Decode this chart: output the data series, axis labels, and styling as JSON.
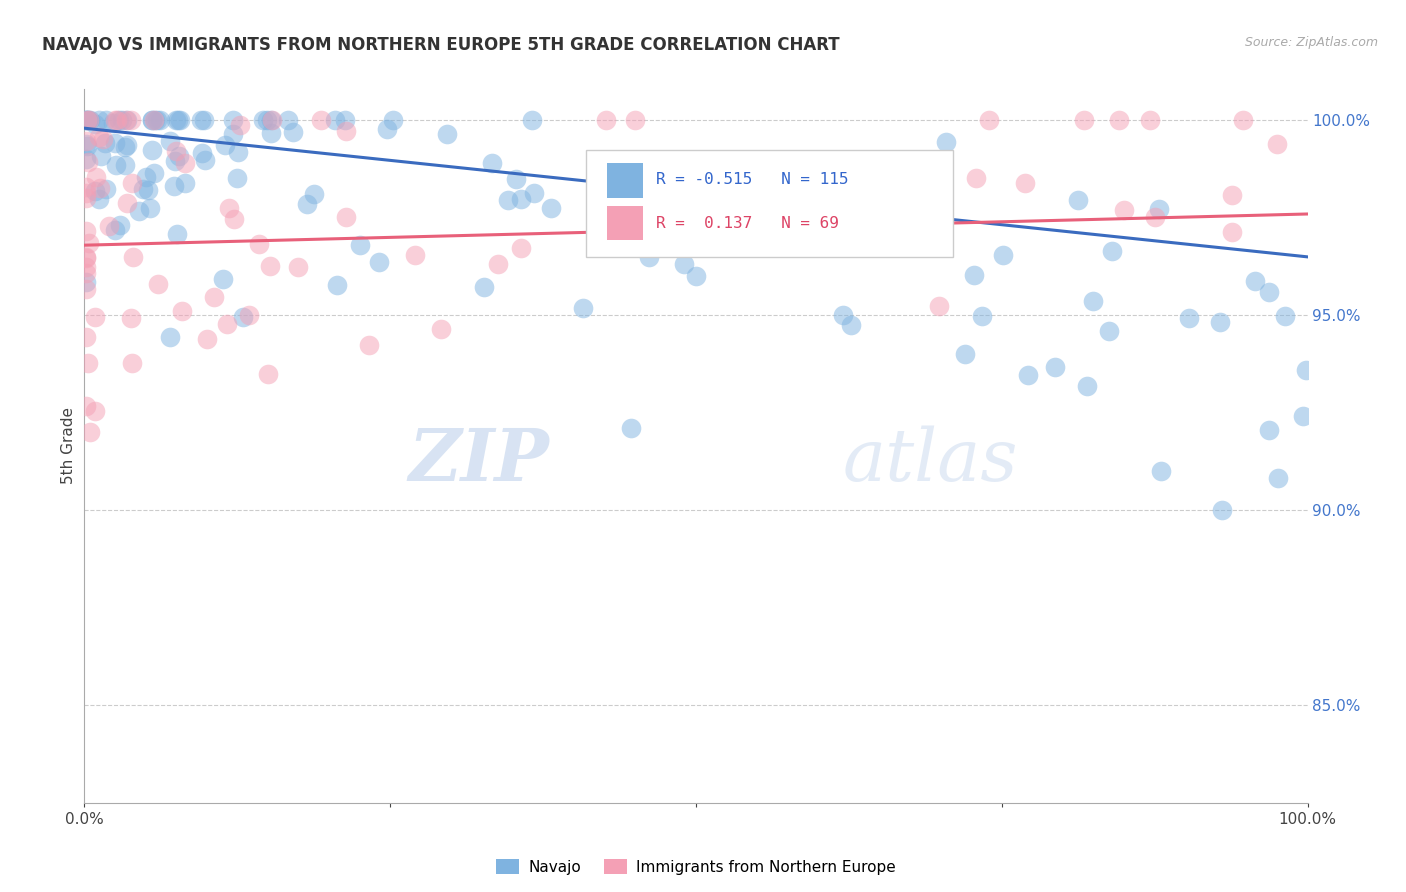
{
  "title": "NAVAJO VS IMMIGRANTS FROM NORTHERN EUROPE 5TH GRADE CORRELATION CHART",
  "source": "Source: ZipAtlas.com",
  "ylabel": "5th Grade",
  "legend_navajo": "Navajo",
  "legend_immigrants": "Immigrants from Northern Europe",
  "navajo_R": -0.515,
  "navajo_N": 115,
  "immigrants_R": 0.137,
  "immigrants_N": 69,
  "navajo_color": "#7fb3e0",
  "immigrants_color": "#f4a0b5",
  "trendline_navajo_color": "#3a6bbf",
  "trendline_immigrants_color": "#e8607a",
  "watermark_zip": "ZIP",
  "watermark_atlas": "atlas",
  "ytick_values": [
    1.0,
    0.95,
    0.9,
    0.85
  ],
  "ymin": 0.825,
  "ymax": 1.008,
  "navajo_scatter_x": [
    0.003,
    0.005,
    0.007,
    0.008,
    0.009,
    0.01,
    0.01,
    0.012,
    0.013,
    0.014,
    0.015,
    0.016,
    0.017,
    0.018,
    0.019,
    0.02,
    0.02,
    0.022,
    0.023,
    0.024,
    0.025,
    0.026,
    0.027,
    0.028,
    0.029,
    0.03,
    0.031,
    0.032,
    0.033,
    0.035,
    0.037,
    0.04,
    0.042,
    0.045,
    0.048,
    0.05,
    0.055,
    0.06,
    0.065,
    0.07,
    0.08,
    0.09,
    0.1,
    0.11,
    0.12,
    0.14,
    0.16,
    0.18,
    0.2,
    0.22,
    0.25,
    0.28,
    0.3,
    0.33,
    0.36,
    0.4,
    0.43,
    0.46,
    0.5,
    0.53,
    0.56,
    0.59,
    0.62,
    0.64,
    0.66,
    0.68,
    0.7,
    0.72,
    0.73,
    0.75,
    0.76,
    0.78,
    0.8,
    0.81,
    0.82,
    0.83,
    0.84,
    0.85,
    0.86,
    0.87,
    0.88,
    0.89,
    0.9,
    0.91,
    0.91,
    0.92,
    0.93,
    0.93,
    0.94,
    0.95,
    0.96,
    0.97,
    0.97,
    0.98,
    0.98,
    0.99,
    0.99,
    1.0,
    1.0,
    1.0,
    1.0,
    1.0,
    1.0,
    1.0,
    1.0,
    1.0,
    1.0,
    1.0,
    1.0,
    1.0,
    1.0,
    1.0,
    1.0,
    1.0,
    1.0
  ],
  "navajo_scatter_y": [
    1.0,
    1.0,
    1.0,
    1.0,
    0.999,
    1.0,
    0.998,
    1.0,
    0.999,
    1.0,
    0.999,
    1.0,
    0.999,
    1.0,
    0.998,
    0.999,
    1.0,
    0.999,
    1.0,
    0.998,
    0.999,
    1.0,
    0.998,
    0.999,
    0.997,
    0.999,
    0.998,
    1.0,
    0.997,
    0.999,
    0.998,
    0.999,
    0.997,
    0.998,
    0.996,
    0.998,
    0.997,
    0.996,
    0.997,
    0.995,
    0.996,
    0.995,
    0.994,
    0.995,
    0.994,
    0.993,
    0.993,
    0.992,
    0.991,
    0.99,
    0.99,
    0.988,
    0.988,
    0.987,
    0.986,
    0.984,
    0.983,
    0.981,
    0.98,
    0.978,
    0.977,
    0.975,
    0.974,
    0.972,
    0.971,
    0.969,
    0.977,
    0.975,
    0.98,
    0.973,
    0.968,
    0.966,
    0.975,
    0.964,
    0.971,
    0.962,
    0.968,
    0.974,
    0.96,
    0.965,
    0.97,
    0.957,
    0.962,
    0.968,
    0.955,
    0.96,
    0.965,
    0.953,
    0.97,
    0.975,
    0.98,
    0.976,
    0.968,
    0.972,
    0.965,
    0.968,
    0.962,
    0.996,
    0.992,
    0.988,
    0.984,
    0.979,
    0.975,
    0.97,
    0.965,
    0.96,
    0.956,
    0.951,
    0.946,
    0.941,
    0.936,
    0.931,
    0.926,
    0.922,
    0.92
  ],
  "immigrants_scatter_x": [
    0.003,
    0.004,
    0.005,
    0.006,
    0.007,
    0.008,
    0.009,
    0.01,
    0.011,
    0.012,
    0.013,
    0.014,
    0.015,
    0.016,
    0.017,
    0.018,
    0.019,
    0.02,
    0.021,
    0.022,
    0.023,
    0.025,
    0.027,
    0.03,
    0.032,
    0.034,
    0.036,
    0.038,
    0.04,
    0.045,
    0.05,
    0.055,
    0.06,
    0.07,
    0.08,
    0.1,
    0.12,
    0.15,
    0.18,
    0.2,
    0.25,
    0.3,
    0.35,
    0.5,
    0.55,
    0.6,
    0.65,
    0.7,
    0.75,
    0.8,
    0.85,
    0.88,
    0.9,
    0.92,
    0.95,
    0.97,
    0.98,
    0.99,
    1.0,
    1.0,
    1.0,
    1.0,
    1.0,
    1.0,
    1.0,
    1.0,
    1.0,
    1.0,
    1.0
  ],
  "immigrants_scatter_y": [
    1.0,
    1.0,
    1.0,
    0.999,
    1.0,
    0.999,
    1.0,
    0.999,
    1.0,
    0.998,
    0.999,
    1.0,
    0.998,
    0.999,
    0.997,
    0.998,
    0.999,
    0.997,
    0.998,
    0.996,
    0.997,
    0.996,
    0.995,
    0.994,
    0.993,
    0.993,
    0.992,
    0.991,
    0.99,
    0.988,
    0.987,
    0.985,
    0.984,
    0.983,
    0.981,
    0.979,
    0.977,
    0.975,
    0.972,
    0.98,
    0.975,
    0.97,
    0.965,
    0.975,
    0.968,
    0.96,
    0.955,
    0.948,
    0.975,
    0.97,
    0.965,
    0.96,
    0.955,
    0.95,
    0.96,
    0.955,
    0.95,
    0.945,
    0.94,
    0.935,
    0.942,
    0.938,
    0.934,
    0.93,
    0.936,
    0.932,
    0.928,
    0.932,
    0.938
  ]
}
